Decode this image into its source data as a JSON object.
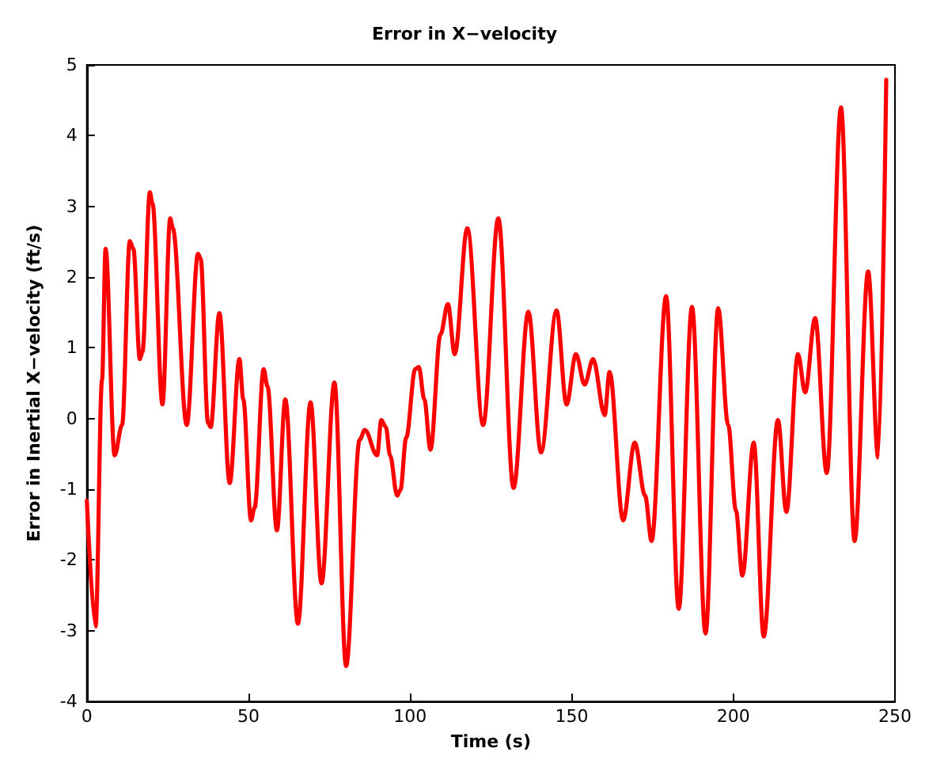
{
  "chart_data": {
    "type": "line",
    "title": "Error in X−velocity",
    "xlabel": "Time (s)",
    "ylabel": "Error in Inertial X−velocity (ft/s)",
    "xlim": [
      0,
      250
    ],
    "xticks": [
      0,
      50,
      100,
      150,
      200,
      250
    ],
    "ylim": [
      -4,
      5
    ],
    "yticks": [
      -4,
      -3,
      -2,
      -1,
      0,
      1,
      2,
      3,
      4,
      5
    ],
    "marker": "none",
    "line_style": "solid",
    "x": [
      0,
      2.7,
      4.7,
      5.8,
      8.6,
      10.9,
      13.3,
      14.4,
      16.4,
      17.2,
      19.5,
      20.3,
      23.4,
      25.8,
      26.6,
      30.9,
      34.4,
      35.2,
      37.5,
      38.3,
      41,
      44.2,
      47.2,
      48.4,
      50.8,
      51.9,
      54.7,
      55.9,
      58.8,
      61.4,
      65.3,
      69.2,
      72.6,
      76.6,
      80.2,
      84.4,
      86,
      89.8,
      91.1,
      92.5,
      93.8,
      96,
      97,
      98.8,
      101.6,
      102.7,
      104.4,
      106.3,
      109.4,
      111.7,
      113.8,
      117.7,
      122.6,
      127.3,
      132,
      136.6,
      140.5,
      145.3,
      148.4,
      151.3,
      154,
      156.6,
      160.2,
      161.7,
      165.9,
      169.5,
      172.7,
      174.7,
      179.2,
      183.1,
      187.2,
      191.4,
      195.3,
      198.4,
      200.8,
      202.8,
      206.3,
      209.4,
      213.8,
      216.4,
      220,
      222.2,
      225.3,
      228.9,
      233.3,
      237.5,
      241.7,
      244.8,
      247.3
    ],
    "series": [
      {
        "color": "#ff0000",
        "values": [
          -1.16,
          -2.94,
          0.55,
          2.4,
          -0.52,
          -0.09,
          2.51,
          2.4,
          0.84,
          0.94,
          3.2,
          3.04,
          0.2,
          2.83,
          2.69,
          -0.09,
          2.33,
          2.26,
          -0.06,
          -0.12,
          1.49,
          -0.91,
          0.84,
          0.27,
          -1.44,
          -1.26,
          0.7,
          0.45,
          -1.58,
          0.27,
          -2.9,
          0.23,
          -2.33,
          0.51,
          -3.5,
          -0.3,
          -0.16,
          -0.52,
          -0.02,
          -0.12,
          -0.52,
          -1.09,
          -1.01,
          -0.27,
          0.7,
          0.73,
          0.27,
          -0.44,
          1.19,
          1.62,
          0.91,
          2.69,
          -0.09,
          2.83,
          -0.98,
          1.51,
          -0.48,
          1.53,
          0.2,
          0.91,
          0.48,
          0.84,
          0.05,
          0.66,
          -1.44,
          -0.34,
          -1.09,
          -1.73,
          1.73,
          -2.69,
          1.58,
          -3.04,
          1.56,
          -0.09,
          -1.3,
          -2.22,
          -0.34,
          -3.08,
          -0.02,
          -1.32,
          0.91,
          0.37,
          1.42,
          -0.77,
          4.4,
          -1.73,
          2.08,
          -0.55,
          4.79
        ]
      }
    ]
  }
}
